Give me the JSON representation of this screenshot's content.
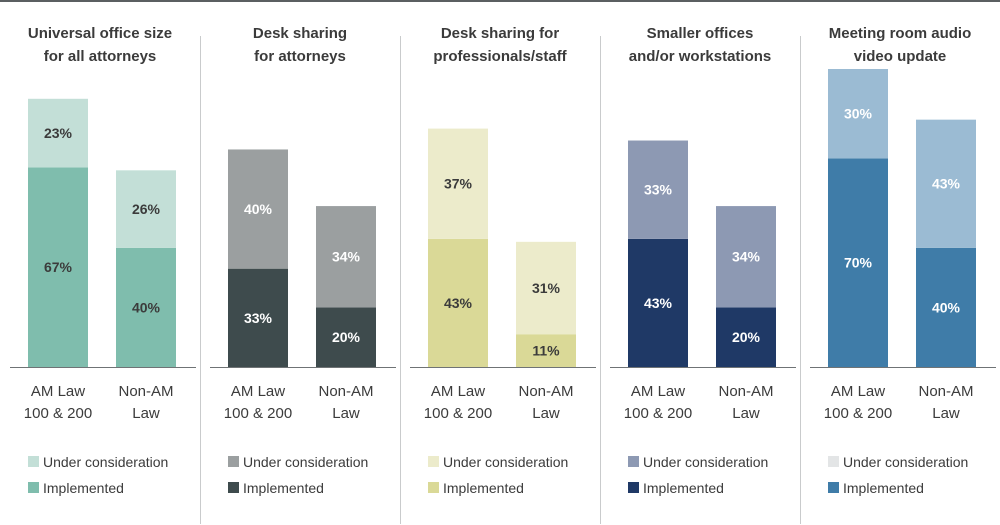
{
  "chart_data": [
    {
      "type": "bar",
      "stacked": true,
      "title": "Universal office size\nfor all attorneys",
      "categories": [
        "AM Law\n100 & 200",
        "Non-AM\nLaw"
      ],
      "series": [
        {
          "name": "Implemented",
          "values": [
            67,
            40
          ],
          "color": "#7fbdad",
          "label_color": "#3b3b3b"
        },
        {
          "name": "Under consideration",
          "values": [
            23,
            26
          ],
          "color": "#c3dfd7",
          "label_color": "#3b3b3b"
        }
      ],
      "ylim": [
        0,
        100
      ]
    },
    {
      "type": "bar",
      "stacked": true,
      "title": "Desk sharing\nfor attorneys",
      "categories": [
        "AM Law\n100 & 200",
        "Non-AM\nLaw"
      ],
      "series": [
        {
          "name": "Implemented",
          "values": [
            33,
            20
          ],
          "color": "#3e4b4d",
          "label_color": "#ffffff"
        },
        {
          "name": "Under consideration",
          "values": [
            40,
            34
          ],
          "color": "#9b9fa0",
          "label_color": "#ffffff"
        }
      ],
      "ylim": [
        0,
        100
      ]
    },
    {
      "type": "bar",
      "stacked": true,
      "title": "Desk sharing for\nprofessionals/staff",
      "categories": [
        "AM Law\n100 & 200",
        "Non-AM\nLaw"
      ],
      "series": [
        {
          "name": "Implemented",
          "values": [
            43,
            11
          ],
          "color": "#dad997",
          "label_color": "#3b3b3b"
        },
        {
          "name": "Under consideration",
          "values": [
            37,
            31
          ],
          "color": "#ecebcb",
          "label_color": "#3b3b3b"
        }
      ],
      "ylim": [
        0,
        100
      ]
    },
    {
      "type": "bar",
      "stacked": true,
      "title": "Smaller offices\nand/or workstations",
      "categories": [
        "AM Law\n100 & 200",
        "Non-AM\nLaw"
      ],
      "series": [
        {
          "name": "Implemented",
          "values": [
            43,
            20
          ],
          "color": "#1f3966",
          "label_color": "#ffffff"
        },
        {
          "name": "Under consideration",
          "values": [
            33,
            34
          ],
          "color": "#8d99b3",
          "label_color": "#ffffff"
        }
      ],
      "ylim": [
        0,
        100
      ]
    },
    {
      "type": "bar",
      "stacked": true,
      "title": "Meeting room audio\nvideo update",
      "categories": [
        "AM Law\n100 & 200",
        "Non-AM\nLaw"
      ],
      "series": [
        {
          "name": "Implemented",
          "values": [
            70,
            40
          ],
          "color": "#3f7ca8",
          "label_color": "#ffffff"
        },
        {
          "name": "Under consideration",
          "values": [
            30,
            43
          ],
          "color": "#9bbbd3",
          "label_color": "#ffffff"
        }
      ],
      "legend_under_color": "#e3e5e6",
      "ylim": [
        0,
        100
      ]
    }
  ],
  "legend_order": [
    "Under consideration",
    "Implemented"
  ],
  "value_suffix": "%"
}
